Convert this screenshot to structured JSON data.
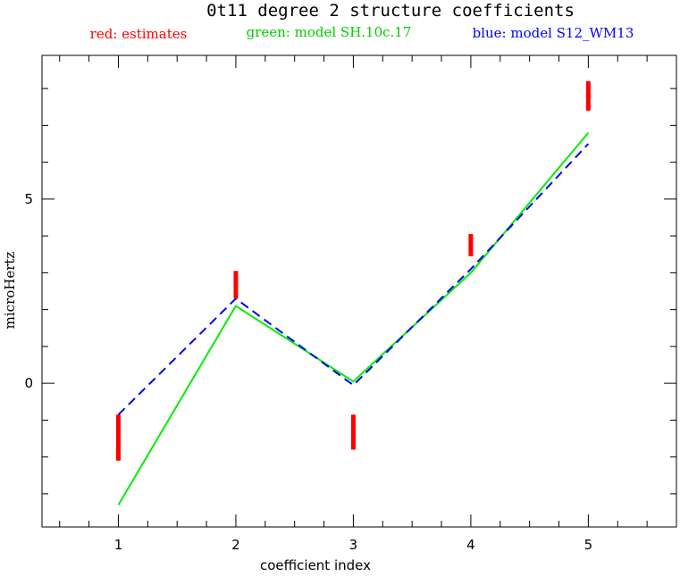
{
  "chart_data": {
    "type": "line",
    "title": "0t11 degree 2 structure coefficients",
    "legend": [
      {
        "label": "red: estimates",
        "color": "#ff0000"
      },
      {
        "label": "green: model SH.10c.17",
        "color": "#00cc00"
      },
      {
        "label": "blue: model S12_WM13",
        "color": "#0000ff"
      }
    ],
    "xlabel": "coefficient index",
    "ylabel": "microHertz",
    "xlim": [
      0.35,
      5.75
    ],
    "ylim": [
      -3.9,
      8.9
    ],
    "x_ticks": [
      1,
      2,
      3,
      4,
      5
    ],
    "y_ticks": [
      0,
      5
    ],
    "estimates": [
      {
        "x": 1,
        "low": -2.1,
        "high": -0.85
      },
      {
        "x": 2,
        "low": 2.3,
        "high": 3.05
      },
      {
        "x": 3,
        "low": -1.8,
        "high": -0.85
      },
      {
        "x": 4,
        "low": 3.45,
        "high": 4.05
      },
      {
        "x": 5,
        "low": 7.4,
        "high": 8.2
      }
    ],
    "series": [
      {
        "name": "model SH.10c.17",
        "color": "#00ee00",
        "dash": false,
        "x": [
          1,
          2,
          3,
          4,
          5
        ],
        "values": [
          -3.3,
          2.1,
          0.05,
          3.0,
          6.8
        ]
      },
      {
        "name": "model S12_WM13",
        "color": "#0000ee",
        "dash": true,
        "x": [
          1,
          2,
          3,
          4,
          5
        ],
        "values": [
          -0.85,
          2.3,
          -0.05,
          3.1,
          6.5
        ]
      }
    ]
  }
}
